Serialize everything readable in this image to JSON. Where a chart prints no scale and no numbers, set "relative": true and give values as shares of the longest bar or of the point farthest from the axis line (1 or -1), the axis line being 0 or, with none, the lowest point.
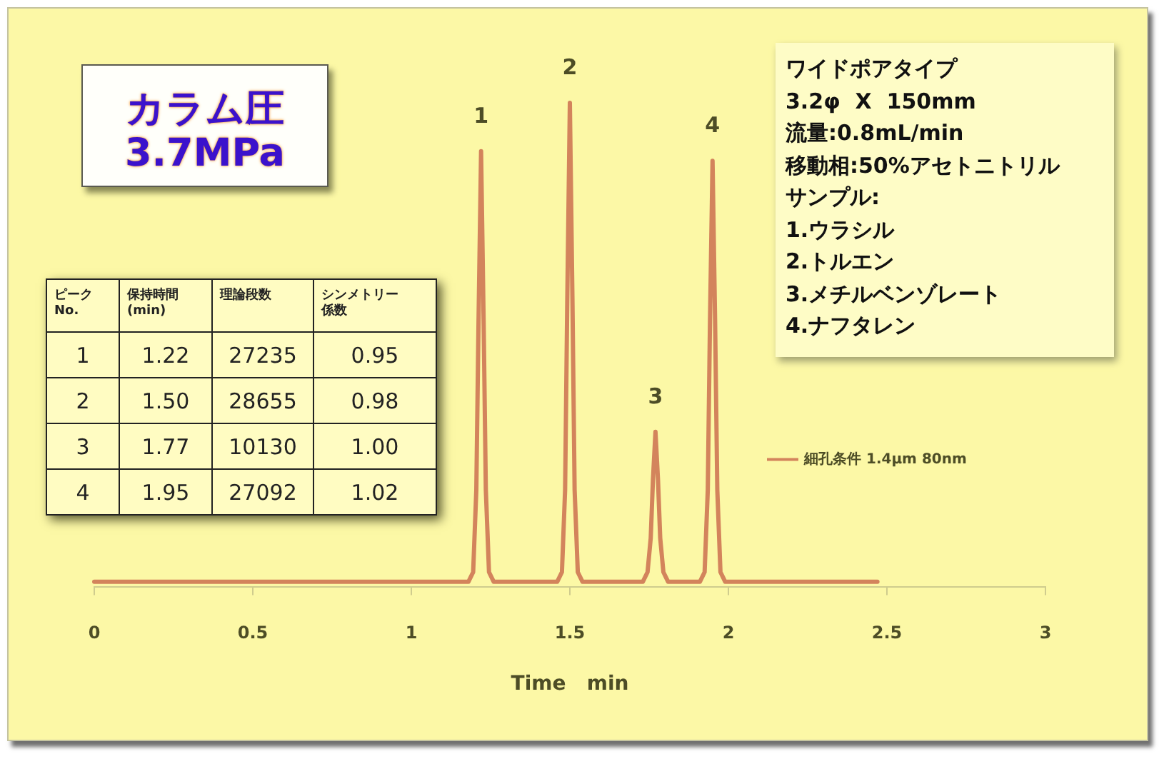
{
  "chart_data": [
    {
      "type": "line",
      "xlabel": "Time   min",
      "xlim": [
        0,
        3
      ],
      "xticks": [
        0,
        0.5,
        1,
        1.5,
        2,
        2.5,
        3
      ],
      "relative": true,
      "legend": "right",
      "marker": "none",
      "x": [
        0,
        1.18,
        1.195,
        1.205,
        1.212,
        1.22,
        1.228,
        1.235,
        1.245,
        1.26,
        1.46,
        1.475,
        1.485,
        1.492,
        1.5,
        1.508,
        1.515,
        1.525,
        1.54,
        1.73,
        1.745,
        1.755,
        1.762,
        1.77,
        1.778,
        1.785,
        1.795,
        1.81,
        1.91,
        1.925,
        1.935,
        1.942,
        1.95,
        1.958,
        1.965,
        1.975,
        1.99,
        2.47
      ],
      "series": [
        {
          "name": "細孔条件 1.4μm 80nm",
          "color": "#d3845c",
          "values": [
            0.01,
            0.01,
            0.03,
            0.2,
            0.55,
            0.9,
            0.55,
            0.2,
            0.03,
            0.01,
            0.01,
            0.03,
            0.2,
            0.6,
            1,
            0.6,
            0.2,
            0.03,
            0.01,
            0.01,
            0.03,
            0.1,
            0.22,
            0.32,
            0.22,
            0.1,
            0.03,
            0.01,
            0.01,
            0.03,
            0.2,
            0.55,
            0.88,
            0.55,
            0.2,
            0.03,
            0.01,
            0.01
          ]
        }
      ],
      "annotations": [
        {
          "text": "1",
          "x": 1.22,
          "y": 0.9
        },
        {
          "text": "2",
          "x": 1.5,
          "y": 1
        },
        {
          "text": "3",
          "x": 1.77,
          "y": 0.32
        },
        {
          "text": "4",
          "x": 1.95,
          "y": 0.88
        }
      ]
    },
    {
      "type": "other",
      "annotations": [
        "カラム圧",
        "3.7MPa"
      ]
    },
    {
      "type": "heatmap",
      "ylabel": "ピーク No.",
      "categories": [
        "保持時間 (min)",
        "理論段数",
        "シンメトリー係数"
      ],
      "y_categories": [
        "1",
        "2",
        "3",
        "4"
      ],
      "cells": [
        [
          1.22,
          27235,
          0.95
        ],
        [
          1.5,
          28655,
          0.98
        ],
        [
          1.77,
          10130,
          1
        ],
        [
          1.95,
          27092,
          1.02
        ]
      ],
      "cell_labels": [
        [
          "1.22",
          "27235",
          "0.95"
        ],
        [
          "1.50",
          "28655",
          "0.98"
        ],
        [
          "1.77",
          "10130",
          "1.00"
        ],
        [
          "1.95",
          "27092",
          "1.02"
        ]
      ]
    },
    {
      "type": "other",
      "annotations": [
        "ワイドポアタイプ",
        "3.2φ  X  150mm",
        "流量:0.8mL/min",
        "移動相:50%アセトニトリル",
        "サンプル:",
        "1.ウラシル",
        "2.トルエン",
        "3.メチルベンゾレート",
        "4.ナフタレン"
      ]
    }
  ]
}
